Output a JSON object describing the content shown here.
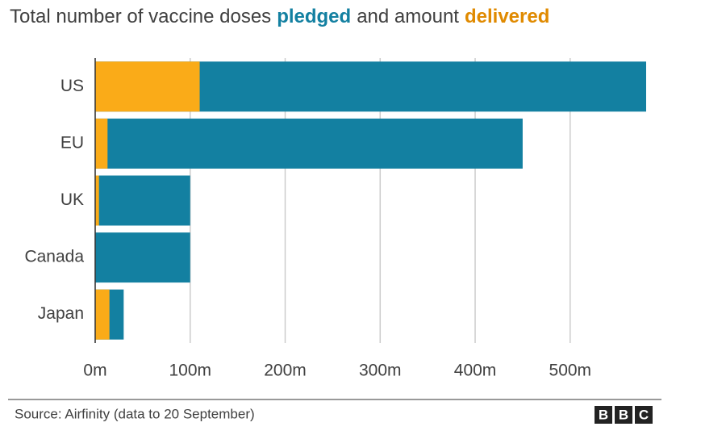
{
  "chart_data": {
    "type": "bar",
    "title": [
      "Total number of vaccine doses",
      "and amount"
    ],
    "categories": [
      "US",
      "EU",
      "UK",
      "Canada",
      "Japan"
    ],
    "series": [
      {
        "name": "pledged",
        "color": "#1380a1",
        "values": [
          580,
          450,
          100,
          100,
          30
        ]
      },
      {
        "name": "delivered",
        "color": "#faab18",
        "values": [
          110,
          13,
          4,
          0,
          15
        ]
      }
    ],
    "xlim": [
      0,
      580
    ],
    "xticks": [
      {
        "value": 0,
        "label": "0m"
      },
      {
        "value": 100,
        "label": "100m"
      },
      {
        "value": 200,
        "label": "200m"
      },
      {
        "value": 300,
        "label": "300m"
      },
      {
        "value": 400,
        "label": "400m"
      },
      {
        "value": 500,
        "label": "500m"
      }
    ],
    "grid": true,
    "source": "Source: Airfinity (data to 20 September)",
    "logo": [
      "B",
      "B",
      "C"
    ]
  }
}
